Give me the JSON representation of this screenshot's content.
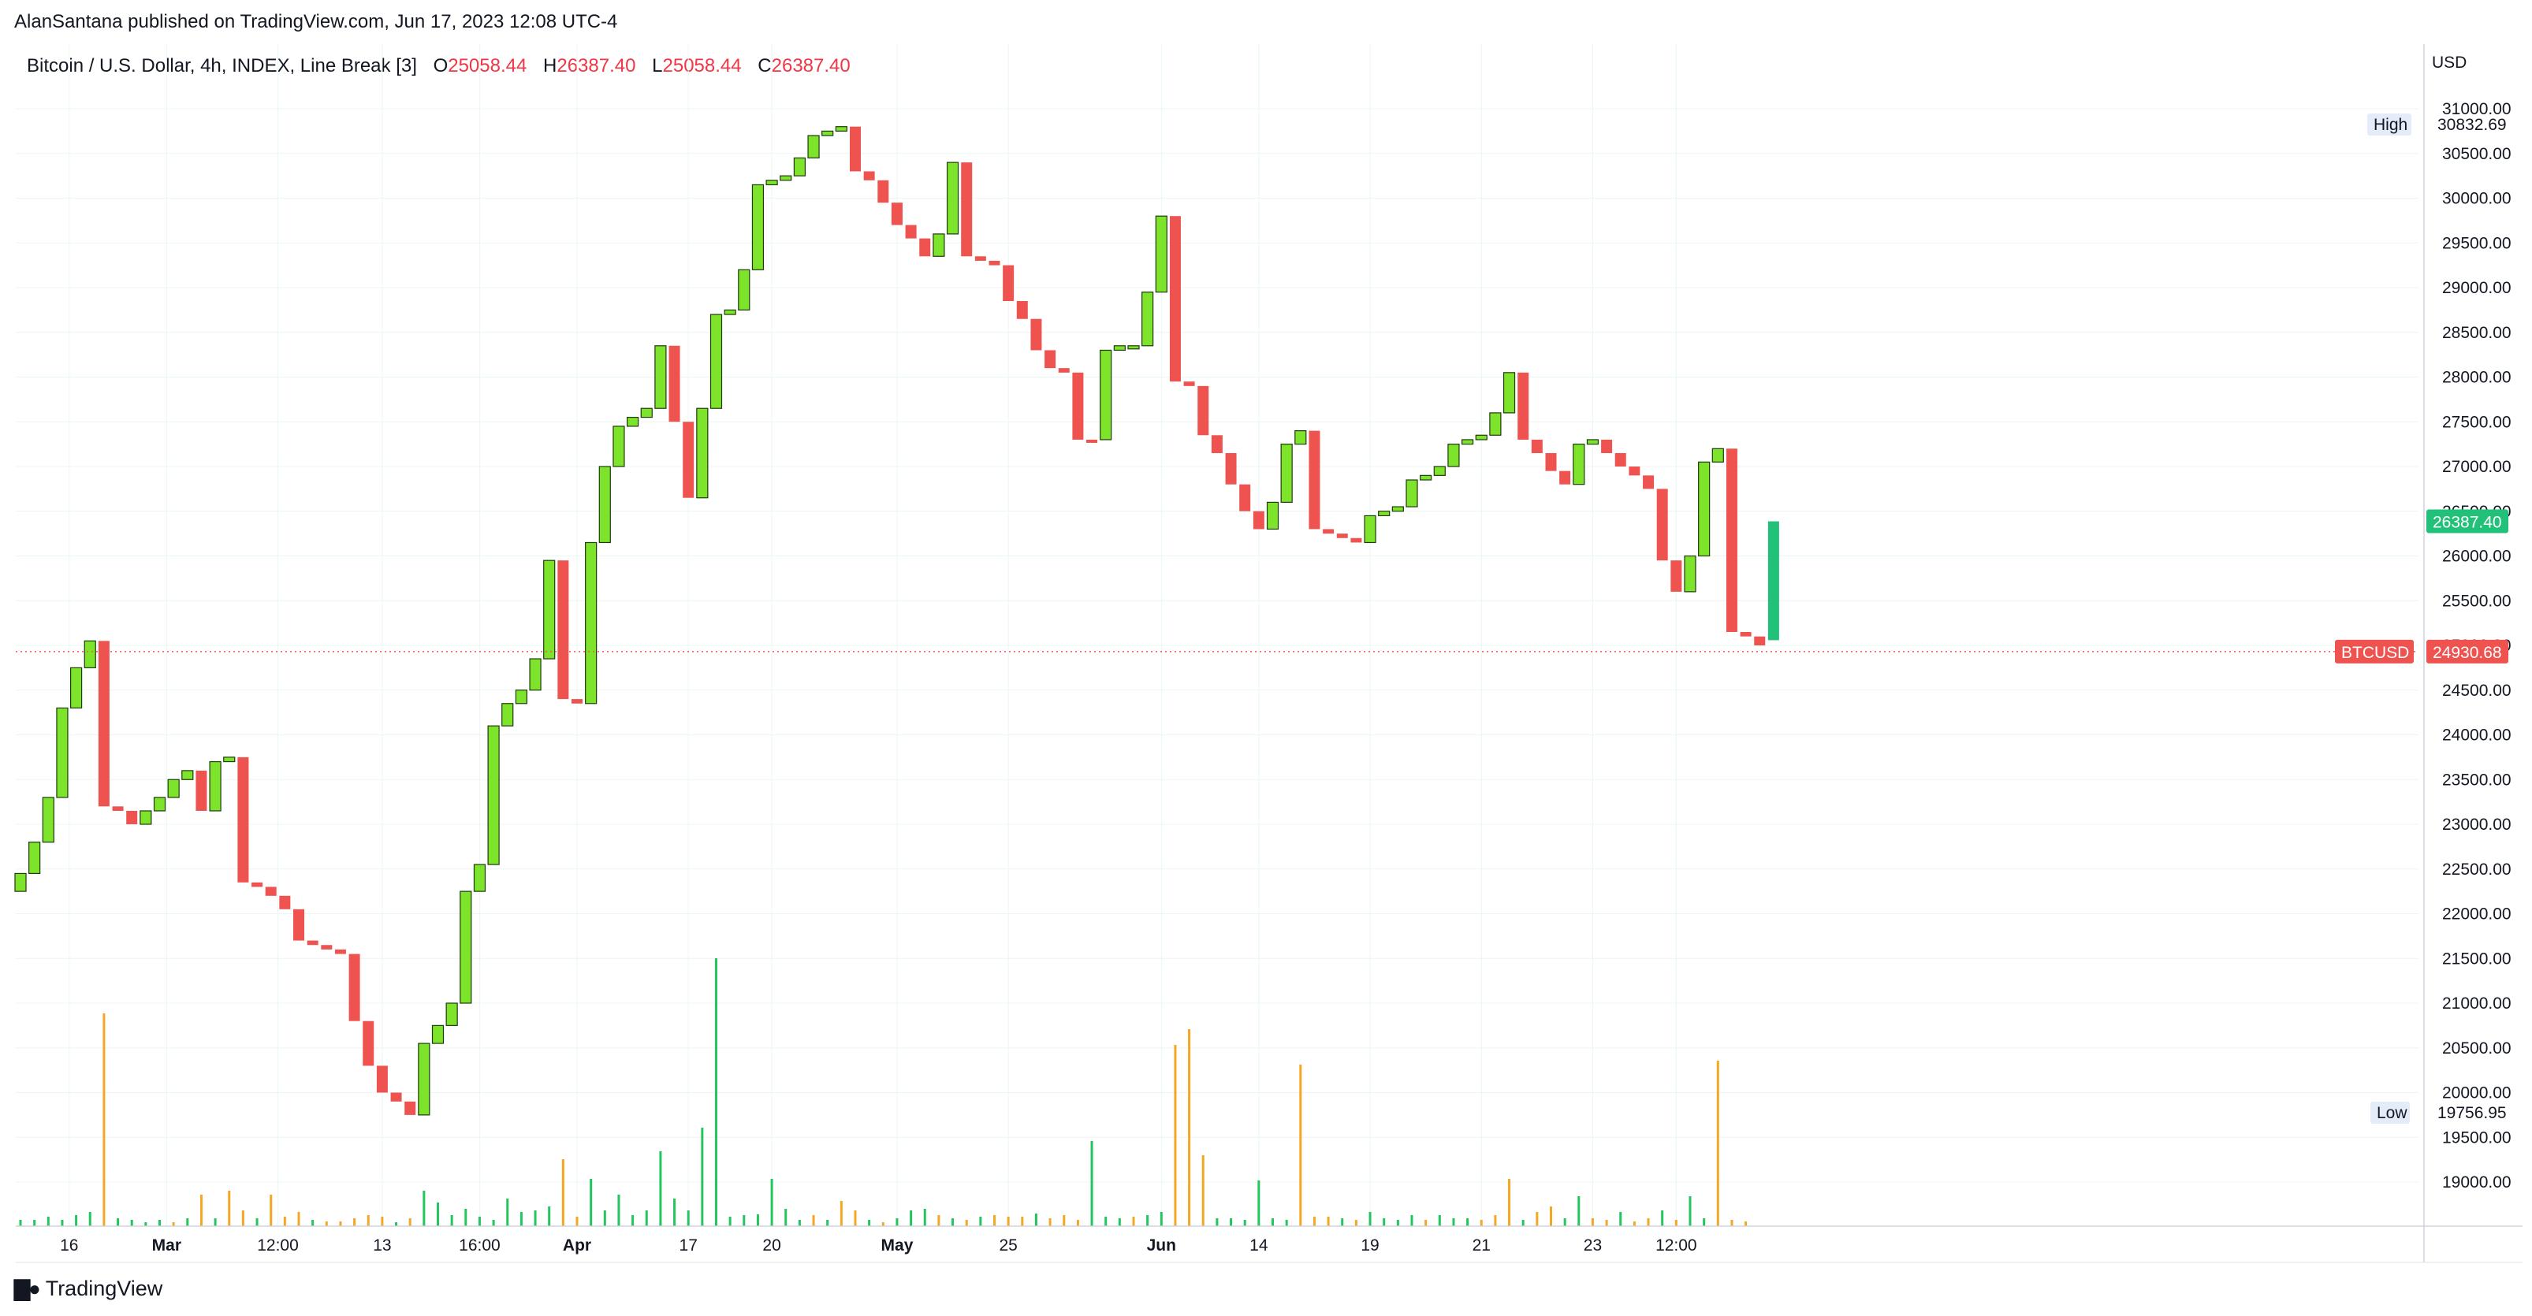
{
  "publisher_line": "AlanSantana published on TradingView.com, Jun 17, 2023 12:08 UTC-4",
  "legend": {
    "symbol": "Bitcoin / U.S. Dollar, 4h, INDEX, Line Break [3]",
    "o_key": "O",
    "o_val": "25058.44",
    "h_key": "H",
    "h_val": "26387.40",
    "l_key": "L",
    "l_val": "25058.44",
    "c_key": "C",
    "c_val": "26387.40"
  },
  "footer": {
    "brand": "TradingView",
    "icon": "tradingview-logo-icon"
  },
  "colors": {
    "up": "#7ee32b",
    "down": "#ef5350",
    "last_up": "#22c17a",
    "vol_up": "#22c55e",
    "vol_down": "#f5a623",
    "grid": "#e9f7f3",
    "price_line": "#ef5350"
  },
  "chart_data": {
    "type": "line-break",
    "currency": "USD",
    "y_ticks": [
      19000,
      19500,
      20000,
      20500,
      21000,
      21500,
      22000,
      22500,
      23000,
      23500,
      24000,
      24500,
      25000,
      25500,
      26000,
      26500,
      27000,
      27500,
      28000,
      28500,
      29000,
      29500,
      30000,
      30500,
      31000
    ],
    "ylim": [
      18500,
      31300
    ],
    "x_ticks": [
      {
        "label": "16",
        "pos": 3.5,
        "bold": false
      },
      {
        "label": "Mar",
        "pos": 10.5,
        "bold": true
      },
      {
        "label": "12:00",
        "pos": 18.5,
        "bold": false
      },
      {
        "label": "13",
        "pos": 26.0,
        "bold": false
      },
      {
        "label": "16:00",
        "pos": 33.0,
        "bold": false
      },
      {
        "label": "Apr",
        "pos": 40.0,
        "bold": true
      },
      {
        "label": "17",
        "pos": 48.0,
        "bold": false
      },
      {
        "label": "20",
        "pos": 54.0,
        "bold": false
      },
      {
        "label": "May",
        "pos": 63.0,
        "bold": true
      },
      {
        "label": "25",
        "pos": 71.0,
        "bold": false
      },
      {
        "label": "Jun",
        "pos": 82.0,
        "bold": true
      },
      {
        "label": "14",
        "pos": 89.0,
        "bold": false
      },
      {
        "label": "19",
        "pos": 97.0,
        "bold": false
      },
      {
        "label": "21",
        "pos": 105.0,
        "bold": false
      },
      {
        "label": "23",
        "pos": 113.0,
        "bold": false
      },
      {
        "label": "12:00",
        "pos": 119.0,
        "bold": false
      }
    ],
    "high": {
      "label": "High",
      "value": "30832.69"
    },
    "low": {
      "label": "Low",
      "value": "19756.95"
    },
    "last": {
      "value": "26387.40",
      "price": 26387.4
    },
    "current": {
      "label": "BTCUSD",
      "value": "24930.68",
      "price": 24930.68
    },
    "boxes": [
      [
        22250,
        22450,
        1
      ],
      [
        22450,
        22800,
        1
      ],
      [
        22800,
        23300,
        1
      ],
      [
        23300,
        24300,
        1
      ],
      [
        24300,
        24750,
        1
      ],
      [
        24750,
        25050,
        1
      ],
      [
        25050,
        23200,
        0
      ],
      [
        23200,
        23150,
        0
      ],
      [
        23150,
        23000,
        0
      ],
      [
        23000,
        23150,
        1
      ],
      [
        23150,
        23300,
        1
      ],
      [
        23300,
        23500,
        1
      ],
      [
        23500,
        23600,
        1
      ],
      [
        23600,
        23150,
        0
      ],
      [
        23150,
        23700,
        1
      ],
      [
        23700,
        23750,
        1
      ],
      [
        23750,
        22350,
        0
      ],
      [
        22350,
        22300,
        0
      ],
      [
        22300,
        22200,
        0
      ],
      [
        22200,
        22050,
        0
      ],
      [
        22050,
        21700,
        0
      ],
      [
        21700,
        21650,
        0
      ],
      [
        21650,
        21600,
        0
      ],
      [
        21600,
        21550,
        0
      ],
      [
        21550,
        20800,
        0
      ],
      [
        20800,
        20300,
        0
      ],
      [
        20300,
        20000,
        0
      ],
      [
        20000,
        19900,
        0
      ],
      [
        19900,
        19750,
        0
      ],
      [
        19750,
        20550,
        1
      ],
      [
        20550,
        20750,
        1
      ],
      [
        20750,
        21000,
        1
      ],
      [
        21000,
        22250,
        1
      ],
      [
        22250,
        22550,
        1
      ],
      [
        22550,
        24100,
        1
      ],
      [
        24100,
        24350,
        1
      ],
      [
        24350,
        24500,
        1
      ],
      [
        24500,
        24850,
        1
      ],
      [
        24850,
        25950,
        1
      ],
      [
        25950,
        24400,
        0
      ],
      [
        24400,
        24350,
        0
      ],
      [
        24350,
        26150,
        1
      ],
      [
        26150,
        27000,
        1
      ],
      [
        27000,
        27450,
        1
      ],
      [
        27450,
        27550,
        1
      ],
      [
        27550,
        27650,
        1
      ],
      [
        27650,
        28350,
        1
      ],
      [
        28350,
        27500,
        0
      ],
      [
        27500,
        26650,
        0
      ],
      [
        26650,
        27650,
        1
      ],
      [
        27650,
        28700,
        1
      ],
      [
        28700,
        28750,
        1
      ],
      [
        28750,
        29200,
        1
      ],
      [
        29200,
        30150,
        1
      ],
      [
        30150,
        30200,
        1
      ],
      [
        30200,
        30250,
        1
      ],
      [
        30250,
        30450,
        1
      ],
      [
        30450,
        30700,
        1
      ],
      [
        30700,
        30750,
        1
      ],
      [
        30750,
        30800,
        1
      ],
      [
        30800,
        30300,
        0
      ],
      [
        30300,
        30200,
        0
      ],
      [
        30200,
        29950,
        0
      ],
      [
        29950,
        29700,
        0
      ],
      [
        29700,
        29550,
        0
      ],
      [
        29550,
        29350,
        0
      ],
      [
        29350,
        29600,
        1
      ],
      [
        29600,
        30400,
        1
      ],
      [
        30400,
        29350,
        0
      ],
      [
        29350,
        29300,
        0
      ],
      [
        29300,
        29250,
        0
      ],
      [
        29250,
        28850,
        0
      ],
      [
        28850,
        28650,
        0
      ],
      [
        28650,
        28300,
        0
      ],
      [
        28300,
        28100,
        0
      ],
      [
        28100,
        28050,
        0
      ],
      [
        28050,
        27300,
        0
      ],
      [
        27300,
        27300,
        0
      ],
      [
        27300,
        28300,
        1
      ],
      [
        28300,
        28350,
        1
      ],
      [
        28350,
        28350,
        1
      ],
      [
        28350,
        28950,
        1
      ],
      [
        28950,
        29800,
        1
      ],
      [
        29800,
        27950,
        0
      ],
      [
        27950,
        27900,
        0
      ],
      [
        27900,
        27350,
        0
      ],
      [
        27350,
        27150,
        0
      ],
      [
        27150,
        26800,
        0
      ],
      [
        26800,
        26500,
        0
      ],
      [
        26500,
        26300,
        0
      ],
      [
        26300,
        26600,
        1
      ],
      [
        26600,
        27250,
        1
      ],
      [
        27250,
        27400,
        1
      ],
      [
        27400,
        26300,
        0
      ],
      [
        26300,
        26250,
        0
      ],
      [
        26250,
        26200,
        0
      ],
      [
        26200,
        26150,
        0
      ],
      [
        26150,
        26450,
        1
      ],
      [
        26450,
        26500,
        1
      ],
      [
        26500,
        26550,
        1
      ],
      [
        26550,
        26850,
        1
      ],
      [
        26850,
        26900,
        1
      ],
      [
        26900,
        27000,
        1
      ],
      [
        27000,
        27250,
        1
      ],
      [
        27250,
        27300,
        1
      ],
      [
        27300,
        27350,
        1
      ],
      [
        27350,
        27600,
        1
      ],
      [
        27600,
        28050,
        1
      ],
      [
        28050,
        27300,
        0
      ],
      [
        27300,
        27150,
        0
      ],
      [
        27150,
        26950,
        0
      ],
      [
        26950,
        26800,
        0
      ],
      [
        26800,
        27250,
        1
      ],
      [
        27250,
        27300,
        1
      ],
      [
        27300,
        27150,
        0
      ],
      [
        27150,
        27000,
        0
      ],
      [
        27000,
        26900,
        0
      ],
      [
        26900,
        26750,
        0
      ],
      [
        26750,
        25950,
        0
      ],
      [
        25950,
        25600,
        0
      ],
      [
        25600,
        26000,
        1
      ],
      [
        26000,
        27050,
        1
      ],
      [
        27050,
        27200,
        1
      ],
      [
        27200,
        25150,
        0
      ],
      [
        25150,
        25100,
        0
      ],
      [
        25100,
        25000,
        0
      ],
      [
        25058,
        26387,
        2
      ]
    ],
    "volumes": [
      [
        0,
        8,
        1
      ],
      [
        1,
        8,
        1
      ],
      [
        2,
        12,
        1
      ],
      [
        3,
        8,
        1
      ],
      [
        4,
        14,
        1
      ],
      [
        5,
        18,
        1
      ],
      [
        6,
        270,
        0
      ],
      [
        7,
        10,
        1
      ],
      [
        8,
        8,
        1
      ],
      [
        9,
        5,
        1
      ],
      [
        10,
        8,
        1
      ],
      [
        11,
        5,
        0
      ],
      [
        12,
        10,
        1
      ],
      [
        13,
        40,
        0
      ],
      [
        14,
        10,
        1
      ],
      [
        15,
        45,
        0
      ],
      [
        16,
        20,
        0
      ],
      [
        17,
        10,
        1
      ],
      [
        18,
        40,
        0
      ],
      [
        19,
        12,
        0
      ],
      [
        20,
        18,
        0
      ],
      [
        21,
        8,
        1
      ],
      [
        22,
        6,
        0
      ],
      [
        23,
        6,
        0
      ],
      [
        24,
        10,
        0
      ],
      [
        25,
        14,
        0
      ],
      [
        26,
        12,
        0
      ],
      [
        27,
        5,
        1
      ],
      [
        28,
        10,
        0
      ],
      [
        29,
        45,
        1
      ],
      [
        30,
        30,
        1
      ],
      [
        31,
        14,
        1
      ],
      [
        32,
        22,
        1
      ],
      [
        33,
        12,
        1
      ],
      [
        34,
        8,
        1
      ],
      [
        35,
        35,
        1
      ],
      [
        36,
        18,
        1
      ],
      [
        37,
        20,
        1
      ],
      [
        38,
        25,
        1
      ],
      [
        39,
        85,
        0
      ],
      [
        40,
        12,
        0
      ],
      [
        41,
        60,
        1
      ],
      [
        42,
        20,
        1
      ],
      [
        43,
        40,
        1
      ],
      [
        44,
        14,
        1
      ],
      [
        45,
        20,
        1
      ],
      [
        46,
        95,
        1
      ],
      [
        47,
        35,
        1
      ],
      [
        48,
        20,
        1
      ],
      [
        49,
        125,
        1
      ],
      [
        50,
        340,
        1
      ],
      [
        51,
        12,
        1
      ],
      [
        52,
        14,
        1
      ],
      [
        53,
        15,
        1
      ],
      [
        54,
        60,
        1
      ],
      [
        55,
        22,
        1
      ],
      [
        56,
        8,
        1
      ],
      [
        57,
        14,
        0
      ],
      [
        58,
        8,
        1
      ],
      [
        59,
        32,
        0
      ],
      [
        60,
        20,
        0
      ],
      [
        61,
        8,
        1
      ],
      [
        62,
        5,
        0
      ],
      [
        63,
        10,
        1
      ],
      [
        64,
        20,
        1
      ],
      [
        65,
        22,
        1
      ],
      [
        66,
        14,
        0
      ],
      [
        67,
        10,
        1
      ],
      [
        68,
        8,
        0
      ],
      [
        69,
        12,
        1
      ],
      [
        70,
        14,
        0
      ],
      [
        71,
        12,
        0
      ],
      [
        72,
        12,
        0
      ],
      [
        73,
        16,
        1
      ],
      [
        74,
        10,
        0
      ],
      [
        75,
        14,
        0
      ],
      [
        76,
        8,
        0
      ],
      [
        77,
        108,
        1
      ],
      [
        78,
        12,
        1
      ],
      [
        79,
        10,
        1
      ],
      [
        80,
        12,
        0
      ],
      [
        81,
        14,
        1
      ],
      [
        82,
        18,
        1
      ],
      [
        83,
        230,
        0
      ],
      [
        84,
        250,
        0
      ],
      [
        85,
        90,
        0
      ],
      [
        86,
        10,
        1
      ],
      [
        87,
        10,
        1
      ],
      [
        88,
        8,
        1
      ],
      [
        89,
        58,
        1
      ],
      [
        90,
        10,
        1
      ],
      [
        91,
        8,
        1
      ],
      [
        92,
        205,
        0
      ],
      [
        93,
        12,
        0
      ],
      [
        94,
        12,
        0
      ],
      [
        95,
        10,
        1
      ],
      [
        96,
        8,
        0
      ],
      [
        97,
        18,
        1
      ],
      [
        98,
        10,
        1
      ],
      [
        99,
        8,
        1
      ],
      [
        100,
        14,
        1
      ],
      [
        101,
        8,
        0
      ],
      [
        102,
        14,
        1
      ],
      [
        103,
        10,
        1
      ],
      [
        104,
        10,
        1
      ],
      [
        105,
        8,
        0
      ],
      [
        106,
        14,
        0
      ],
      [
        107,
        60,
        0
      ],
      [
        108,
        8,
        1
      ],
      [
        109,
        18,
        0
      ],
      [
        110,
        25,
        0
      ],
      [
        111,
        10,
        1
      ],
      [
        112,
        38,
        1
      ],
      [
        113,
        10,
        0
      ],
      [
        114,
        8,
        0
      ],
      [
        115,
        18,
        1
      ],
      [
        116,
        6,
        0
      ],
      [
        117,
        10,
        0
      ],
      [
        118,
        20,
        1
      ],
      [
        119,
        8,
        0
      ],
      [
        120,
        38,
        1
      ],
      [
        121,
        10,
        1
      ],
      [
        122,
        210,
        0
      ],
      [
        123,
        8,
        0
      ],
      [
        124,
        6,
        0
      ]
    ]
  }
}
